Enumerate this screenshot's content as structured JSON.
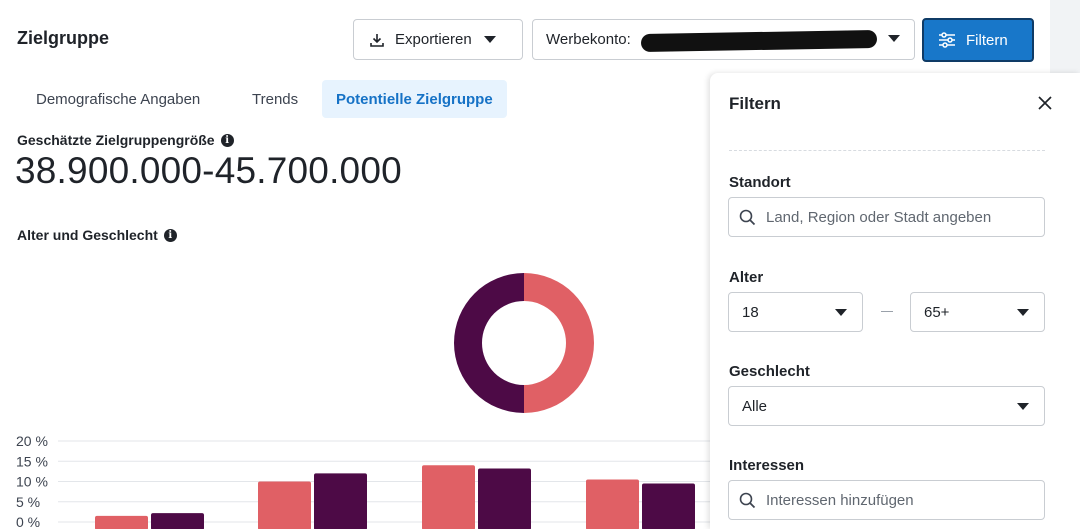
{
  "header": {
    "title": "Zielgruppe",
    "export_label": "Exportieren",
    "account_label": "Werbekonto:",
    "filter_label": "Filtern"
  },
  "tabs": [
    {
      "label": "Demografische Angaben",
      "active": false
    },
    {
      "label": "Trends",
      "active": false
    },
    {
      "label": "Potentielle Zielgruppe",
      "active": true
    }
  ],
  "main": {
    "size_label": "Geschätzte Zielgruppengröße",
    "size_value": "38.900.000-45.700.000",
    "age_gender_label": "Alter und Geschlecht"
  },
  "chart_data": {
    "type": "bar",
    "donut": {
      "values": [
        50,
        50
      ],
      "colors": [
        "#e06065",
        "#4d0a46"
      ]
    },
    "y_ticks": [
      "20 %",
      "15 %",
      "10 %",
      "5 %",
      "0 %"
    ],
    "ylim": [
      0,
      20
    ],
    "series": [
      {
        "color": "#e06065",
        "values": [
          1.5,
          10,
          14,
          10.5
        ]
      },
      {
        "color": "#4d0a46",
        "values": [
          2.2,
          12,
          13.2,
          9.5
        ]
      }
    ]
  },
  "filter_panel": {
    "title": "Filtern",
    "location_label": "Standort",
    "location_placeholder": "Land, Region oder Stadt angeben",
    "age_label": "Alter",
    "age_from": "18",
    "age_to": "65+",
    "gender_label": "Geschlecht",
    "gender_value": "Alle",
    "interests_label": "Interessen",
    "interests_placeholder": "Interessen hinzufügen"
  },
  "colors": {
    "accent": "#1877c9",
    "active_tab_bg": "#e7f3fe",
    "female": "#e06065",
    "male": "#4d0a46"
  }
}
